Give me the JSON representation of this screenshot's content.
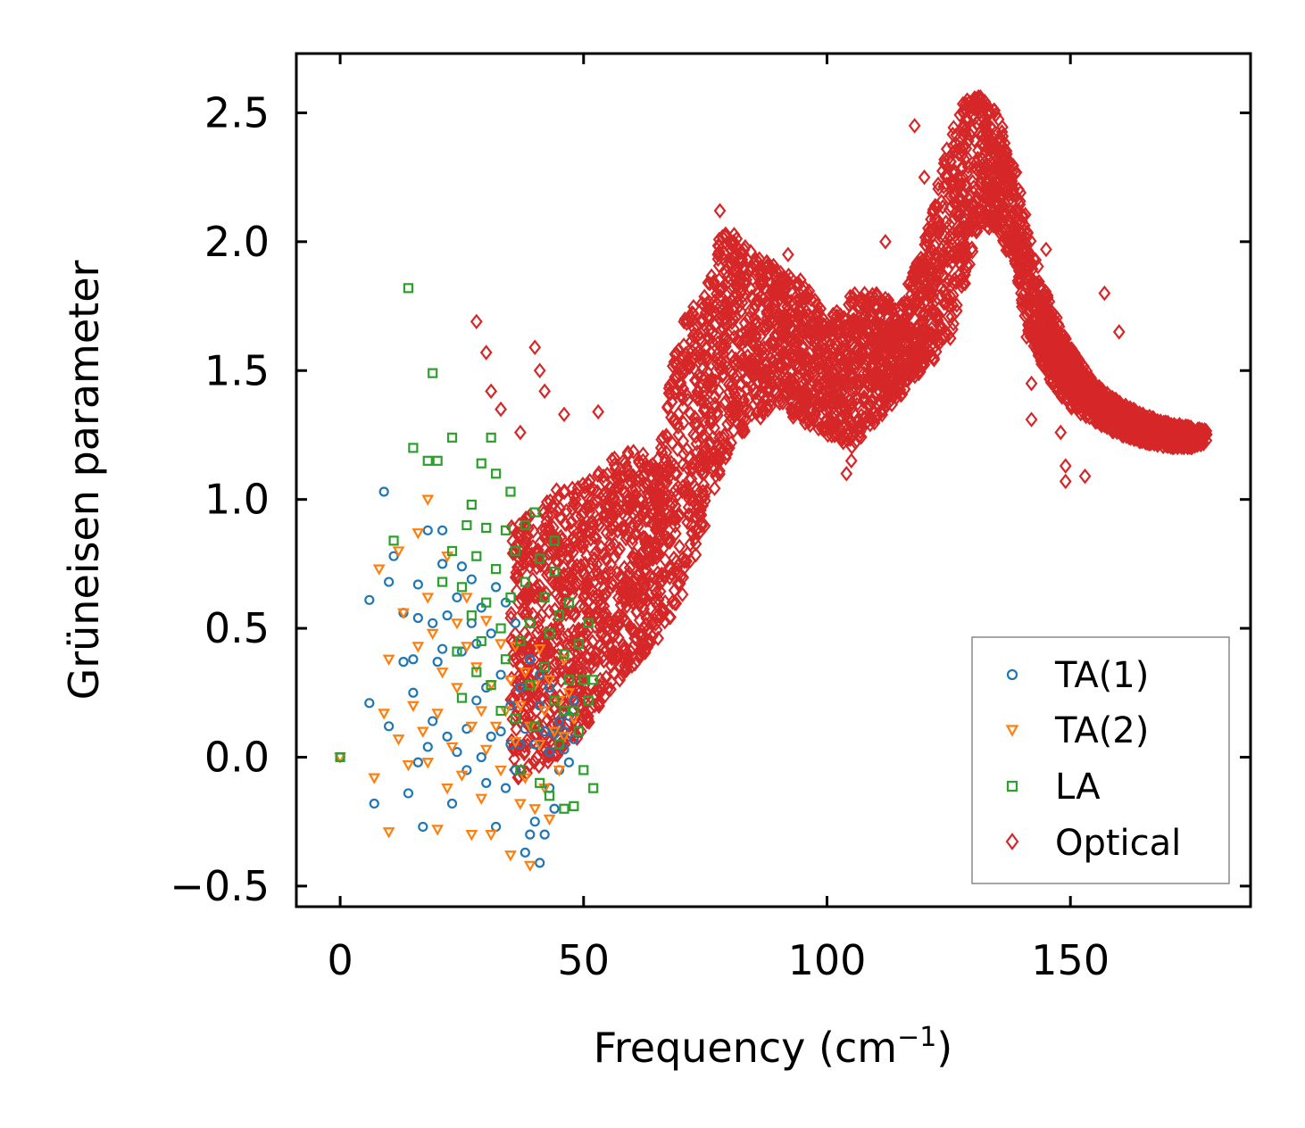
{
  "chart_data": {
    "type": "scatter",
    "title": "",
    "xlabel": "Frequency (cm",
    "xlabel_sup": "−1",
    "xlabel_end": ")",
    "ylabel": "Grüneisen parameter",
    "xlim": [
      -9,
      187
    ],
    "ylim": [
      -0.58,
      2.73
    ],
    "xticks": [
      0,
      50,
      100,
      150
    ],
    "xtick_labels": [
      "0",
      "50",
      "100",
      "150"
    ],
    "yticks": [
      -0.5,
      0.0,
      0.5,
      1.0,
      1.5,
      2.0,
      2.5
    ],
    "ytick_labels": [
      "−0.5",
      "0.0",
      "0.5",
      "1.0",
      "1.5",
      "2.0",
      "2.5"
    ],
    "legend_position": "lower-right",
    "series": [
      {
        "name": "TA(1)",
        "marker": "circle",
        "color": "#1f77b4",
        "points": [
          [
            0,
            0
          ],
          [
            6,
            0.61
          ],
          [
            6,
            0.21
          ],
          [
            7,
            -0.18
          ],
          [
            9,
            1.03
          ],
          [
            10,
            0.12
          ],
          [
            10,
            0.68
          ],
          [
            11,
            0.78
          ],
          [
            13,
            0.56
          ],
          [
            13,
            0.37
          ],
          [
            14,
            -0.14
          ],
          [
            15,
            0.25
          ],
          [
            15,
            0.38
          ],
          [
            16,
            -0.02
          ],
          [
            16,
            0.54
          ],
          [
            16,
            0.67
          ],
          [
            17,
            -0.27
          ],
          [
            18,
            0.04
          ],
          [
            18,
            0.88
          ],
          [
            19,
            0.52
          ],
          [
            19,
            0.14
          ],
          [
            20,
            0.37
          ],
          [
            21,
            0.88
          ],
          [
            21,
            0.75
          ],
          [
            21,
            0.42
          ],
          [
            22,
            0.55
          ],
          [
            22,
            0.08
          ],
          [
            23,
            -0.18
          ],
          [
            24,
            0.02
          ],
          [
            24,
            0.62
          ],
          [
            25,
            0.41
          ],
          [
            25,
            0.74
          ],
          [
            26,
            0.11
          ],
          [
            26,
            -0.05
          ],
          [
            27,
            0.52
          ],
          [
            27,
            0.69
          ],
          [
            28,
            0.22
          ],
          [
            28,
            0.44
          ],
          [
            29,
            0
          ],
          [
            29,
            0.58
          ],
          [
            30,
            0.27
          ],
          [
            30,
            -0.1
          ],
          [
            31,
            0.08
          ],
          [
            31,
            0.48
          ],
          [
            32,
            -0.27
          ],
          [
            32,
            0.66
          ],
          [
            33,
            0.1
          ],
          [
            33,
            0.32
          ],
          [
            34,
            -0.12
          ],
          [
            34,
            0.6
          ],
          [
            35,
            0.05
          ],
          [
            35,
            0.2
          ],
          [
            36,
            -0.05
          ],
          [
            36,
            0.52
          ],
          [
            37,
            0.27
          ],
          [
            37,
            0.05
          ],
          [
            38,
            -0.37
          ],
          [
            38,
            0.11
          ],
          [
            39,
            -0.3
          ],
          [
            39,
            0.38
          ],
          [
            40,
            0.05
          ],
          [
            40,
            -0.25
          ],
          [
            41,
            0.2
          ],
          [
            41,
            -0.41
          ],
          [
            42,
            0.1
          ],
          [
            42,
            -0.3
          ],
          [
            43,
            0.02
          ],
          [
            43,
            0.27
          ],
          [
            44,
            -0.2
          ],
          [
            44,
            0.09
          ],
          [
            45,
            0.14
          ],
          [
            45,
            -0.05
          ],
          [
            46,
            0.03
          ],
          [
            46,
            0.1
          ],
          [
            47,
            0.16
          ],
          [
            47,
            -0.02
          ],
          [
            48,
            0.07
          ],
          [
            48,
            0.22
          ],
          [
            43,
            -0.12
          ],
          [
            41,
            0.32
          ]
        ]
      },
      {
        "name": "TA(2)",
        "marker": "triangle-down",
        "color": "#ff7f0e",
        "points": [
          [
            0,
            0
          ],
          [
            7,
            -0.08
          ],
          [
            8,
            0.73
          ],
          [
            9,
            0.17
          ],
          [
            10,
            -0.29
          ],
          [
            10,
            0.38
          ],
          [
            12,
            0.07
          ],
          [
            13,
            0.56
          ],
          [
            14,
            -0.03
          ],
          [
            15,
            0.2
          ],
          [
            16,
            0.87
          ],
          [
            16,
            0.43
          ],
          [
            17,
            0.1
          ],
          [
            18,
            -0.02
          ],
          [
            18,
            0.62
          ],
          [
            19,
            0.48
          ],
          [
            20,
            0.17
          ],
          [
            20,
            -0.28
          ],
          [
            21,
            0.33
          ],
          [
            22,
            0.78
          ],
          [
            22,
            -0.12
          ],
          [
            23,
            0.04
          ],
          [
            24,
            0.27
          ],
          [
            24,
            0.52
          ],
          [
            25,
            -0.07
          ],
          [
            26,
            0.43
          ],
          [
            26,
            0.62
          ],
          [
            27,
            0.12
          ],
          [
            27,
            -0.3
          ],
          [
            28,
            0.35
          ],
          [
            29,
            0.18
          ],
          [
            29,
            -0.16
          ],
          [
            30,
            0.53
          ],
          [
            30,
            0.03
          ],
          [
            31,
            -0.3
          ],
          [
            31,
            0.28
          ],
          [
            32,
            0.12
          ],
          [
            33,
            0.44
          ],
          [
            33,
            -0.05
          ],
          [
            34,
            0.18
          ],
          [
            35,
            -0.38
          ],
          [
            35,
            0.3
          ],
          [
            36,
            0.06
          ],
          [
            36,
            0.43
          ],
          [
            37,
            -0.18
          ],
          [
            37,
            0.2
          ],
          [
            38,
            0.33
          ],
          [
            38,
            -0.08
          ],
          [
            39,
            -0.42
          ],
          [
            39,
            0.12
          ],
          [
            40,
            0.28
          ],
          [
            40,
            -0.2
          ],
          [
            41,
            0.05
          ],
          [
            41,
            0.42
          ],
          [
            42,
            -0.12
          ],
          [
            42,
            0.18
          ],
          [
            43,
            0.3
          ],
          [
            43,
            -0.24
          ],
          [
            44,
            0.1
          ],
          [
            45,
            0.22
          ],
          [
            45,
            -0.05
          ],
          [
            46,
            0.38
          ],
          [
            46,
            0.08
          ],
          [
            47,
            0.25
          ],
          [
            48,
            0.15
          ],
          [
            18,
            1
          ],
          [
            12,
            0.8
          ]
        ]
      },
      {
        "name": "LA",
        "marker": "square",
        "color": "#2ca02c",
        "points": [
          [
            0,
            0
          ],
          [
            11,
            0.84
          ],
          [
            14,
            1.82
          ],
          [
            15,
            1.2
          ],
          [
            18,
            1.15
          ],
          [
            19,
            1.49
          ],
          [
            20,
            1.15
          ],
          [
            21,
            0.68
          ],
          [
            23,
            1.24
          ],
          [
            23,
            0.8
          ],
          [
            24,
            0.41
          ],
          [
            25,
            0.23
          ],
          [
            25,
            0.66
          ],
          [
            26,
            0.9
          ],
          [
            27,
            0.55
          ],
          [
            27,
            0.98
          ],
          [
            28,
            0.78
          ],
          [
            28,
            0.33
          ],
          [
            29,
            1.14
          ],
          [
            29,
            0.45
          ],
          [
            30,
            0.89
          ],
          [
            30,
            0.6
          ],
          [
            31,
            1.24
          ],
          [
            31,
            0.28
          ],
          [
            32,
            0.73
          ],
          [
            32,
            1.1
          ],
          [
            33,
            0.5
          ],
          [
            33,
            0.18
          ],
          [
            34,
            0.88
          ],
          [
            34,
            0.38
          ],
          [
            35,
            1.03
          ],
          [
            35,
            0.62
          ],
          [
            36,
            0.15
          ],
          [
            36,
            0.8
          ],
          [
            37,
            0.45
          ],
          [
            37,
            -0.05
          ],
          [
            38,
            0.9
          ],
          [
            38,
            0.68
          ],
          [
            39,
            0.28
          ],
          [
            39,
            0.52
          ],
          [
            40,
            0.95
          ],
          [
            40,
            0.12
          ],
          [
            41,
            0.77
          ],
          [
            41,
            -0.1
          ],
          [
            42,
            0.62
          ],
          [
            42,
            0.35
          ],
          [
            43,
            0.48
          ],
          [
            43,
            -0.15
          ],
          [
            44,
            0.72
          ],
          [
            44,
            0.22
          ],
          [
            45,
            0.55
          ],
          [
            45,
            0.05
          ],
          [
            46,
            0.4
          ],
          [
            46,
            -0.2
          ],
          [
            47,
            0.6
          ],
          [
            47,
            0.3
          ],
          [
            48,
            0.18
          ],
          [
            48,
            -0.19
          ],
          [
            49,
            0.44
          ],
          [
            49,
            0.1
          ],
          [
            50,
            0.3
          ],
          [
            50,
            -0.05
          ],
          [
            51,
            0.52
          ],
          [
            51,
            0.22
          ],
          [
            52,
            0.3
          ],
          [
            52,
            -0.12
          ],
          [
            44,
            0.84
          ],
          [
            46,
            0.18
          ]
        ]
      },
      {
        "name": "Optical",
        "marker": "diamond",
        "color": "#d62728",
        "envelope": [
          [
            35,
            -0.1,
            0.9
          ],
          [
            40,
            -0.05,
            0.95
          ],
          [
            45,
            0.0,
            1.05
          ],
          [
            50,
            0.1,
            1.1
          ],
          [
            55,
            0.25,
            1.15
          ],
          [
            60,
            0.35,
            1.2
          ],
          [
            65,
            0.45,
            1.15
          ],
          [
            70,
            0.6,
            1.7
          ],
          [
            75,
            0.9,
            1.8
          ],
          [
            78,
            1.1,
            2.05
          ],
          [
            80,
            1.2,
            2.05
          ],
          [
            85,
            1.3,
            1.95
          ],
          [
            90,
            1.35,
            1.9
          ],
          [
            95,
            1.3,
            1.85
          ],
          [
            100,
            1.25,
            1.7
          ],
          [
            105,
            1.2,
            1.8
          ],
          [
            110,
            1.3,
            1.8
          ],
          [
            115,
            1.4,
            1.75
          ],
          [
            120,
            1.5,
            2.0
          ],
          [
            125,
            1.6,
            2.4
          ],
          [
            128,
            1.8,
            2.55
          ],
          [
            131,
            2.05,
            2.58
          ],
          [
            135,
            2.05,
            2.5
          ],
          [
            138,
            1.9,
            2.35
          ],
          [
            142,
            1.6,
            2.0
          ],
          [
            146,
            1.45,
            1.75
          ],
          [
            150,
            1.35,
            1.6
          ],
          [
            155,
            1.3,
            1.45
          ],
          [
            160,
            1.25,
            1.38
          ],
          [
            165,
            1.22,
            1.33
          ],
          [
            170,
            1.2,
            1.3
          ],
          [
            175,
            1.2,
            1.28
          ],
          [
            178,
            1.22,
            1.27
          ]
        ],
        "outliers": [
          [
            28,
            1.69
          ],
          [
            30,
            1.57
          ],
          [
            31,
            1.42
          ],
          [
            33,
            1.35
          ],
          [
            40,
            1.59
          ],
          [
            41,
            1.5
          ],
          [
            42,
            1.42
          ],
          [
            37,
            1.26
          ],
          [
            46,
            1.33
          ],
          [
            53,
            1.34
          ],
          [
            78,
            2.12
          ],
          [
            92,
            1.95
          ],
          [
            104,
            1.1
          ],
          [
            105,
            1.15
          ],
          [
            112,
            2.0
          ],
          [
            118,
            2.45
          ],
          [
            120,
            2.25
          ],
          [
            141,
            1.63
          ],
          [
            142,
            1.45
          ],
          [
            142,
            1.31
          ],
          [
            148,
            1.26
          ],
          [
            149,
            1.13
          ],
          [
            149,
            1.07
          ],
          [
            153,
            1.09
          ],
          [
            140,
            1.88
          ],
          [
            141,
            1.99
          ],
          [
            145,
            1.97
          ],
          [
            157,
            1.8
          ],
          [
            160,
            1.65
          ]
        ]
      }
    ]
  }
}
